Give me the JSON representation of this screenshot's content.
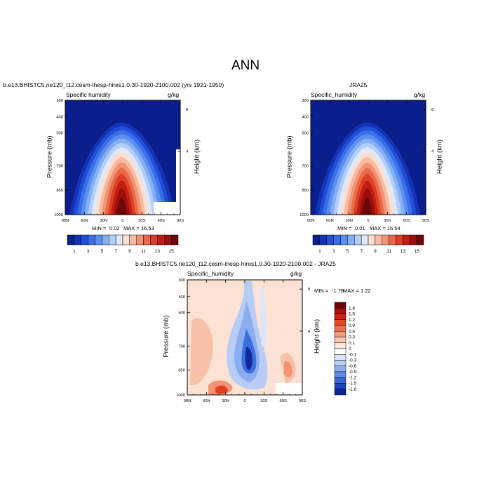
{
  "figure_title": "ANN",
  "chart_data": [
    {
      "type": "heatmap",
      "title": "b.e13.BHISTC5.ne120_t12.cesm-ihesp-hires1.0.30-1920-2100.002 (yrs 1921-1950)",
      "left_subtitle": "Specific humidity",
      "right_subtitle": "g/kg",
      "ylabel": "Pressure (mb)",
      "y2label": "Height (km)",
      "x_ticks": [
        "90N",
        "60N",
        "30N",
        "0",
        "30S",
        "60S",
        "90S"
      ],
      "y_ticks": [
        "300",
        "400",
        "500",
        "700",
        "850",
        "1000"
      ],
      "y2_ticks": [
        "8",
        "4"
      ],
      "min_label": "MIN =",
      "min_value": "0.02",
      "max_label": "MAX =",
      "max_value": "16.53",
      "colorbar_labels": [
        "1",
        "3",
        "5",
        "7",
        "9",
        "11",
        "13",
        "15"
      ]
    },
    {
      "type": "heatmap",
      "title": "JRA25",
      "left_subtitle": "Specific_humidity",
      "right_subtitle": "g/kg",
      "ylabel": "Pressure (mb)",
      "y2label": "Height (km)",
      "x_ticks": [
        "90N",
        "60N",
        "30N",
        "0",
        "30S",
        "60S",
        "90S"
      ],
      "y_ticks": [
        "300",
        "400",
        "500",
        "700",
        "850",
        "1000"
      ],
      "y2_ticks": [
        "8",
        "4"
      ],
      "min_label": "MIN =",
      "min_value": "0.01",
      "max_label": "MAX =",
      "max_value": "16.54",
      "colorbar_labels": [
        "1",
        "3",
        "5",
        "7",
        "9",
        "11",
        "13",
        "15"
      ]
    },
    {
      "type": "heatmap",
      "title": "b.e13.BHISTC5.ne120_t12.cesm-ihesp-hires1.0.30-1920-2100.002 - JRA25",
      "left_subtitle": "Specific_humidity",
      "right_subtitle": "g/kg",
      "ylabel": "Pressure (mb)",
      "y2label": "Height (km)",
      "x_ticks": [
        "90N",
        "60N",
        "30N",
        "0",
        "30S",
        "60S",
        "90S"
      ],
      "y_ticks": [
        "300",
        "400",
        "500",
        "700",
        "850",
        "1000"
      ],
      "y2_ticks": [
        "8",
        "4"
      ],
      "min_label": "MIN =",
      "min_value": "-1.78",
      "max_label": "MAX =",
      "max_value": "1.22",
      "colorbar_labels": [
        "1.8",
        "1.5",
        "1.2",
        "0.9",
        "0.6",
        "0.3",
        "0.1",
        "0",
        "-0.1",
        "-0.3",
        "-0.6",
        "-0.9",
        "-1.2",
        "-1.5",
        "-1.8"
      ]
    }
  ],
  "colors": {
    "abs_scale": [
      "#0a1e8c",
      "#1532b4",
      "#1f4fd8",
      "#3a6fe8",
      "#5b8ff0",
      "#86b0f5",
      "#b3cff8",
      "#dde8fb",
      "#fbe0d2",
      "#f7bba3",
      "#f29474",
      "#ea6a48",
      "#dc3f25",
      "#c21d12",
      "#9a0f0c",
      "#6e0608"
    ],
    "diff_scale": [
      "#6e0608",
      "#a50f0c",
      "#d11f10",
      "#e64a24",
      "#f07050",
      "#f59b7c",
      "#f9c5ae",
      "#fde6da",
      "#ffffff",
      "#dbe6fa",
      "#b7cdf5",
      "#8aaef0",
      "#5e8de8",
      "#3367d9",
      "#1a44c0",
      "#0d2690"
    ]
  }
}
